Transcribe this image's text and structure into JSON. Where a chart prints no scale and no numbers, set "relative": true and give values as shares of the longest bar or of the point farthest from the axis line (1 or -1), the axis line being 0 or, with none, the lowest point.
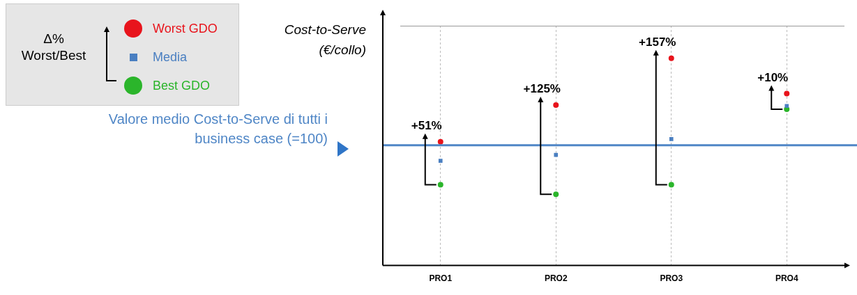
{
  "chart_data": {
    "type": "scatter",
    "relative": true,
    "ylabel": "Cost-to-Serve (€/collo)",
    "legend_title": "Δ% Worst/Best",
    "legend": "top left",
    "grid": "x",
    "categories": [
      "PRO1",
      "PRO2",
      "PRO3",
      "PRO4"
    ],
    "series": [
      {
        "name": "Worst GDO",
        "color": "#e8141c",
        "marker": "circle",
        "values": [
          0.597,
          0.774,
          1,
          0.83
        ]
      },
      {
        "name": "Media",
        "color": "#4a7fc1",
        "marker": "square",
        "values": [
          0.505,
          0.534,
          0.61,
          0.77
        ]
      },
      {
        "name": "Best GDO",
        "color": "#2bb52b",
        "marker": "circle",
        "values": [
          0.39,
          0.344,
          0.39,
          0.754
        ]
      }
    ],
    "ref_lines": [
      {
        "axis": "y",
        "value": 0.58,
        "color": "#4f86c6"
      }
    ],
    "annotations": [
      "Valore medio Cost-to-Serve di tutti i business case (=100)",
      {
        "text": "+51%",
        "x": "PRO1",
        "y": 0.597
      },
      {
        "text": "+125%",
        "x": "PRO2",
        "y": 0.774
      },
      {
        "text": "+157%",
        "x": "PRO3",
        "y": 1
      },
      {
        "text": "+10%",
        "x": "PRO4",
        "y": 0.83
      }
    ]
  }
}
